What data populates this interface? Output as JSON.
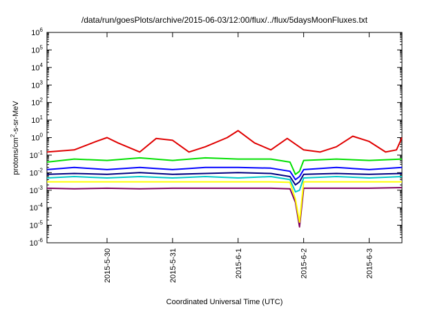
{
  "chart_data": {
    "type": "line",
    "title": "/data/run/goesPlots/archive/2015-06-03/12:00/flux/../flux/5daysMoonFluxes.txt",
    "xlabel": "Coordinated Universal Time (UTC)",
    "ylabel_parts": [
      "protons/cm",
      "2",
      "-s-sr-MeV"
    ],
    "yscale": "log",
    "ylim": [
      1e-06,
      1000000.0
    ],
    "y_ticks": [
      {
        "base": "10",
        "exp": "-6",
        "value": 1e-06
      },
      {
        "base": "10",
        "exp": "-5",
        "value": 1e-05
      },
      {
        "base": "10",
        "exp": "-4",
        "value": 0.0001
      },
      {
        "base": "10",
        "exp": "-3",
        "value": 0.001
      },
      {
        "base": "10",
        "exp": "-2",
        "value": 0.01
      },
      {
        "base": "10",
        "exp": "-1",
        "value": 0.1
      },
      {
        "base": "10",
        "exp": "0",
        "value": 1
      },
      {
        "base": "10",
        "exp": "1",
        "value": 10
      },
      {
        "base": "10",
        "exp": "2",
        "value": 100
      },
      {
        "base": "10",
        "exp": "3",
        "value": 1000
      },
      {
        "base": "10",
        "exp": "4",
        "value": 10000
      },
      {
        "base": "10",
        "exp": "5",
        "value": 100000
      },
      {
        "base": "10",
        "exp": "6",
        "value": 1000000
      }
    ],
    "x_domain": [
      "2015-05-29T02:00",
      "2015-06-03T12:00"
    ],
    "x_ticks": [
      {
        "label": "2015-5-30",
        "t": "2015-05-30T00:00"
      },
      {
        "label": "2015-5-31",
        "t": "2015-05-31T00:00"
      },
      {
        "label": "2015-6-1",
        "t": "2015-06-01T00:00"
      },
      {
        "label": "2015-6-2",
        "t": "2015-06-02T00:00"
      },
      {
        "label": "2015-6-3",
        "t": "2015-06-03T00:00"
      }
    ],
    "grid": false,
    "legend": "none",
    "series": [
      {
        "color": "#800060",
        "values": [
          [
            "2015-05-29T02:00",
            0.0013
          ],
          [
            "2015-05-29T12:00",
            0.0012
          ],
          [
            "2015-05-30T00:00",
            0.0013
          ],
          [
            "2015-05-30T12:00",
            0.0012
          ],
          [
            "2015-05-31T00:00",
            0.0013
          ],
          [
            "2015-05-31T12:00",
            0.0013
          ],
          [
            "2015-06-01T00:00",
            0.0013
          ],
          [
            "2015-06-01T12:00",
            0.0013
          ],
          [
            "2015-06-01T19:00",
            0.0012
          ],
          [
            "2015-06-01T21:00",
            0.0002
          ],
          [
            "2015-06-01T22:30",
            8e-06
          ],
          [
            "2015-06-02T00:00",
            0.0013
          ],
          [
            "2015-06-02T12:00",
            0.0013
          ],
          [
            "2015-06-03T00:00",
            0.0013
          ],
          [
            "2015-06-03T12:00",
            0.0014
          ]
        ]
      },
      {
        "color": "#ffff00",
        "values": [
          [
            "2015-05-29T02:00",
            0.003
          ],
          [
            "2015-05-29T12:00",
            0.003
          ],
          [
            "2015-05-30T00:00",
            0.003
          ],
          [
            "2015-05-30T12:00",
            0.003
          ],
          [
            "2015-05-31T00:00",
            0.003
          ],
          [
            "2015-05-31T12:00",
            0.003
          ],
          [
            "2015-06-01T00:00",
            0.003
          ],
          [
            "2015-06-01T12:00",
            0.003
          ],
          [
            "2015-06-01T19:00",
            0.0028
          ],
          [
            "2015-06-01T21:00",
            0.0003
          ],
          [
            "2015-06-01T22:30",
            1.5e-05
          ],
          [
            "2015-06-02T00:00",
            0.003
          ],
          [
            "2015-06-02T12:00",
            0.003
          ],
          [
            "2015-06-03T00:00",
            0.003
          ],
          [
            "2015-06-03T12:00",
            0.003
          ]
        ]
      },
      {
        "color": "#00c8c8",
        "values": [
          [
            "2015-05-29T02:00",
            0.005
          ],
          [
            "2015-05-29T12:00",
            0.006
          ],
          [
            "2015-05-30T00:00",
            0.005
          ],
          [
            "2015-05-30T12:00",
            0.006
          ],
          [
            "2015-05-31T00:00",
            0.005
          ],
          [
            "2015-05-31T12:00",
            0.006
          ],
          [
            "2015-06-01T00:00",
            0.005
          ],
          [
            "2015-06-01T12:00",
            0.006
          ],
          [
            "2015-06-01T19:00",
            0.004
          ],
          [
            "2015-06-01T21:00",
            0.0008
          ],
          [
            "2015-06-01T22:30",
            0.001
          ],
          [
            "2015-06-02T00:00",
            0.005
          ],
          [
            "2015-06-02T12:00",
            0.006
          ],
          [
            "2015-06-03T00:00",
            0.005
          ],
          [
            "2015-06-03T12:00",
            0.006
          ]
        ]
      },
      {
        "color": "#000080",
        "values": [
          [
            "2015-05-29T02:00",
            0.008
          ],
          [
            "2015-05-29T12:00",
            0.009
          ],
          [
            "2015-05-30T00:00",
            0.008
          ],
          [
            "2015-05-30T12:00",
            0.01
          ],
          [
            "2015-05-31T00:00",
            0.008
          ],
          [
            "2015-05-31T12:00",
            0.009
          ],
          [
            "2015-06-01T00:00",
            0.01
          ],
          [
            "2015-06-01T12:00",
            0.009
          ],
          [
            "2015-06-01T19:00",
            0.006
          ],
          [
            "2015-06-01T21:00",
            0.002
          ],
          [
            "2015-06-01T22:30",
            0.003
          ],
          [
            "2015-06-02T00:00",
            0.008
          ],
          [
            "2015-06-02T12:00",
            0.009
          ],
          [
            "2015-06-03T00:00",
            0.008
          ],
          [
            "2015-06-03T12:00",
            0.009
          ]
        ]
      },
      {
        "color": "#0000ff",
        "values": [
          [
            "2015-05-29T02:00",
            0.015
          ],
          [
            "2015-05-29T12:00",
            0.02
          ],
          [
            "2015-05-30T00:00",
            0.015
          ],
          [
            "2015-05-30T12:00",
            0.02
          ],
          [
            "2015-05-31T00:00",
            0.015
          ],
          [
            "2015-05-31T12:00",
            0.02
          ],
          [
            "2015-06-01T00:00",
            0.02
          ],
          [
            "2015-06-01T12:00",
            0.018
          ],
          [
            "2015-06-01T19:00",
            0.012
          ],
          [
            "2015-06-01T21:00",
            0.004
          ],
          [
            "2015-06-01T22:30",
            0.006
          ],
          [
            "2015-06-02T00:00",
            0.015
          ],
          [
            "2015-06-02T12:00",
            0.02
          ],
          [
            "2015-06-03T00:00",
            0.015
          ],
          [
            "2015-06-03T12:00",
            0.02
          ]
        ]
      },
      {
        "color": "#00e000",
        "values": [
          [
            "2015-05-29T02:00",
            0.04
          ],
          [
            "2015-05-29T12:00",
            0.06
          ],
          [
            "2015-05-30T00:00",
            0.05
          ],
          [
            "2015-05-30T12:00",
            0.07
          ],
          [
            "2015-05-31T00:00",
            0.05
          ],
          [
            "2015-05-31T12:00",
            0.07
          ],
          [
            "2015-06-01T00:00",
            0.06
          ],
          [
            "2015-06-01T12:00",
            0.06
          ],
          [
            "2015-06-01T19:00",
            0.04
          ],
          [
            "2015-06-01T21:00",
            0.008
          ],
          [
            "2015-06-01T22:30",
            0.012
          ],
          [
            "2015-06-02T00:00",
            0.05
          ],
          [
            "2015-06-02T12:00",
            0.06
          ],
          [
            "2015-06-03T00:00",
            0.05
          ],
          [
            "2015-06-03T12:00",
            0.06
          ]
        ]
      },
      {
        "color": "#e00000",
        "values": [
          [
            "2015-05-29T02:00",
            0.15
          ],
          [
            "2015-05-29T12:00",
            0.2
          ],
          [
            "2015-05-29T20:00",
            0.6
          ],
          [
            "2015-05-30T00:00",
            1.0
          ],
          [
            "2015-05-30T04:00",
            0.5
          ],
          [
            "2015-05-30T12:00",
            0.15
          ],
          [
            "2015-05-30T18:00",
            0.9
          ],
          [
            "2015-05-31T00:00",
            0.7
          ],
          [
            "2015-05-31T06:00",
            0.15
          ],
          [
            "2015-05-31T12:00",
            0.3
          ],
          [
            "2015-05-31T20:00",
            1.0
          ],
          [
            "2015-06-01T00:00",
            2.5
          ],
          [
            "2015-06-01T06:00",
            0.5
          ],
          [
            "2015-06-01T12:00",
            0.2
          ],
          [
            "2015-06-01T18:00",
            0.9
          ],
          [
            "2015-06-02T00:00",
            0.2
          ],
          [
            "2015-06-02T06:00",
            0.15
          ],
          [
            "2015-06-02T12:00",
            0.3
          ],
          [
            "2015-06-02T18:00",
            1.2
          ],
          [
            "2015-06-03T00:00",
            0.6
          ],
          [
            "2015-06-03T06:00",
            0.15
          ],
          [
            "2015-06-03T10:00",
            0.2
          ],
          [
            "2015-06-03T12:00",
            1.0
          ]
        ]
      }
    ]
  }
}
